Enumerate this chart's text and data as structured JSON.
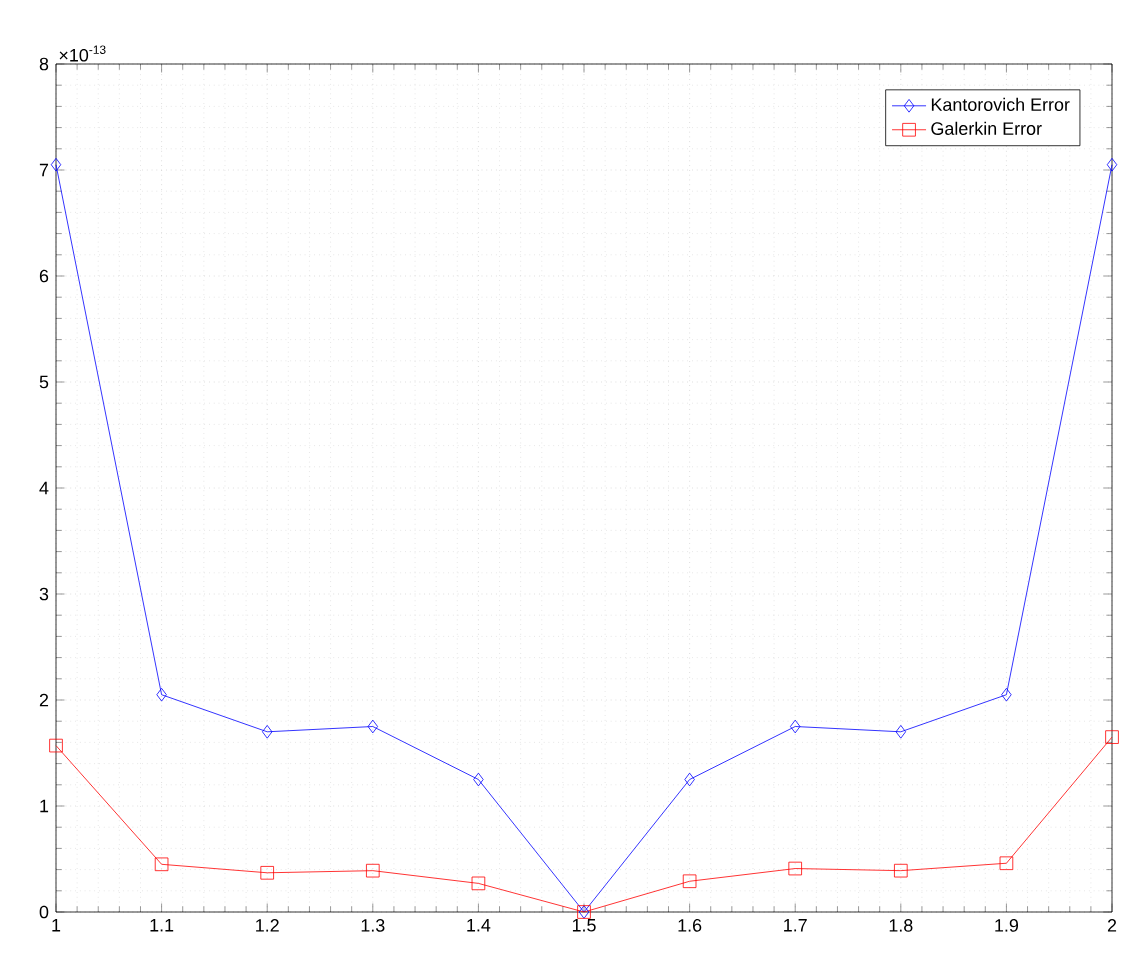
{
  "chart_data": {
    "type": "line",
    "x": [
      1,
      1.1,
      1.2,
      1.3,
      1.4,
      1.5,
      1.6,
      1.7,
      1.8,
      1.9,
      2
    ],
    "series": [
      {
        "name": "Kantorovich Error",
        "color": "#0000ff",
        "marker": "diamond",
        "values": [
          7.05,
          2.05,
          1.7,
          1.75,
          1.25,
          0,
          1.25,
          1.75,
          1.7,
          2.05,
          7.05
        ]
      },
      {
        "name": "Galerkin Error",
        "color": "#ff0000",
        "marker": "square",
        "values": [
          1.57,
          0.45,
          0.37,
          0.39,
          0.27,
          0,
          0.29,
          0.41,
          0.39,
          0.46,
          1.65
        ]
      }
    ],
    "xlim": [
      1,
      2
    ],
    "xticks": [
      1,
      1.1,
      1.2,
      1.3,
      1.4,
      1.5,
      1.6,
      1.7,
      1.8,
      1.9,
      2
    ],
    "ylim": [
      0,
      8
    ],
    "yticks": [
      0,
      1,
      2,
      3,
      4,
      5,
      6,
      7,
      8
    ],
    "annotations": [
      "×10$^{-13}$"
    ],
    "grid": true,
    "legend": "top right",
    "line_style": "solid"
  }
}
